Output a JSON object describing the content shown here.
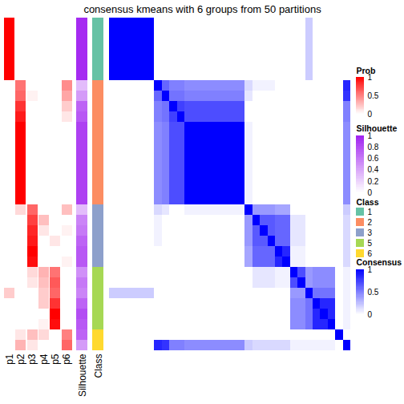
{
  "chart_data": {
    "type": "heatmap",
    "title": "consensus kmeans with 6 groups from 50 partitions",
    "annotation_labels": [
      "p1",
      "p2",
      "p3",
      "p4",
      "p5",
      "p6",
      "Silhouette",
      "Class"
    ],
    "prob": [
      [
        1,
        0,
        0,
        0,
        0,
        0
      ],
      [
        1,
        0,
        0,
        0,
        0,
        0
      ],
      [
        1,
        0,
        0,
        0,
        0,
        0
      ],
      [
        1,
        0,
        0,
        0,
        0,
        0
      ],
      [
        1,
        0,
        0,
        0,
        0,
        0
      ],
      [
        1,
        0,
        0,
        0,
        0,
        0
      ],
      [
        0,
        0.55,
        0,
        0,
        0,
        0.45
      ],
      [
        0,
        0.6,
        0.05,
        0,
        0,
        0.35
      ],
      [
        0,
        0.8,
        0,
        0,
        0,
        0.2
      ],
      [
        0,
        0.9,
        0,
        0,
        0,
        0.1
      ],
      [
        0,
        1,
        0,
        0,
        0,
        0
      ],
      [
        0,
        1,
        0,
        0,
        0,
        0
      ],
      [
        0,
        1,
        0,
        0,
        0,
        0
      ],
      [
        0,
        1,
        0,
        0,
        0,
        0
      ],
      [
        0,
        1,
        0,
        0,
        0,
        0
      ],
      [
        0,
        1,
        0,
        0,
        0,
        0
      ],
      [
        0,
        1,
        0,
        0,
        0,
        0
      ],
      [
        0,
        1,
        0,
        0,
        0,
        0
      ],
      [
        0,
        0.15,
        0.6,
        0,
        0,
        0.25
      ],
      [
        0,
        0,
        0.75,
        0.25,
        0,
        0
      ],
      [
        0,
        0,
        0.85,
        0.1,
        0,
        0.05
      ],
      [
        0,
        0,
        0.9,
        0,
        0.1,
        0
      ],
      [
        0,
        0,
        1,
        0,
        0,
        0
      ],
      [
        0,
        0,
        0.95,
        0,
        0,
        0.05
      ],
      [
        0,
        0,
        0.15,
        0.3,
        0.55,
        0
      ],
      [
        0,
        0,
        0.1,
        0.25,
        0.65,
        0
      ],
      [
        0.2,
        0,
        0,
        0.2,
        0.6,
        0
      ],
      [
        0,
        0,
        0,
        0.2,
        0.8,
        0
      ],
      [
        0,
        0,
        0,
        0,
        1,
        0
      ],
      [
        0,
        0,
        0,
        0.05,
        0.95,
        0
      ],
      [
        0,
        0.1,
        0.25,
        0.15,
        0,
        0.5
      ],
      [
        0,
        0.3,
        0.1,
        0,
        0,
        0.6
      ]
    ],
    "silhouette": [
      0.95,
      0.95,
      0.95,
      0.95,
      0.95,
      0.95,
      0.3,
      0.45,
      0.7,
      0.75,
      0.85,
      0.85,
      0.85,
      0.85,
      0.85,
      0.85,
      0.85,
      0.85,
      0.3,
      0.55,
      0.6,
      0.7,
      0.75,
      0.75,
      0.5,
      0.6,
      0.55,
      0.7,
      0.8,
      0.75,
      0.7,
      0.45
    ],
    "class": [
      1,
      1,
      1,
      1,
      1,
      1,
      2,
      2,
      2,
      2,
      2,
      2,
      2,
      2,
      2,
      2,
      2,
      2,
      3,
      3,
      3,
      3,
      3,
      3,
      5,
      5,
      5,
      5,
      5,
      5,
      6,
      6
    ],
    "consensus": [
      [
        1,
        1,
        1,
        1,
        1,
        1,
        0,
        0,
        0,
        0,
        0,
        0,
        0,
        0,
        0,
        0,
        0,
        0,
        0,
        0,
        0,
        0,
        0,
        0,
        0,
        0,
        0.2,
        0,
        0,
        0,
        0,
        0
      ],
      [
        1,
        1,
        1,
        1,
        1,
        1,
        0,
        0,
        0,
        0,
        0,
        0,
        0,
        0,
        0,
        0,
        0,
        0,
        0,
        0,
        0,
        0,
        0,
        0,
        0,
        0,
        0.2,
        0,
        0,
        0,
        0,
        0
      ],
      [
        1,
        1,
        1,
        1,
        1,
        1,
        0,
        0,
        0,
        0,
        0,
        0,
        0,
        0,
        0,
        0,
        0,
        0,
        0,
        0,
        0,
        0,
        0,
        0,
        0,
        0,
        0.2,
        0,
        0,
        0,
        0,
        0
      ],
      [
        1,
        1,
        1,
        1,
        1,
        1,
        0,
        0,
        0,
        0,
        0,
        0,
        0,
        0,
        0,
        0,
        0,
        0,
        0,
        0,
        0,
        0,
        0,
        0,
        0,
        0,
        0.2,
        0,
        0,
        0,
        0,
        0
      ],
      [
        1,
        1,
        1,
        1,
        1,
        1,
        0,
        0,
        0,
        0,
        0,
        0,
        0,
        0,
        0,
        0,
        0,
        0,
        0,
        0,
        0,
        0,
        0,
        0,
        0,
        0,
        0.2,
        0,
        0,
        0,
        0,
        0
      ],
      [
        1,
        1,
        1,
        1,
        1,
        1,
        0,
        0,
        0,
        0,
        0,
        0,
        0,
        0,
        0,
        0,
        0,
        0,
        0,
        0,
        0,
        0,
        0,
        0,
        0,
        0,
        0.2,
        0,
        0,
        0,
        0,
        0
      ],
      [
        0,
        0,
        0,
        0,
        0,
        0,
        1,
        0.6,
        0.5,
        0.5,
        0.45,
        0.45,
        0.45,
        0.45,
        0.45,
        0.45,
        0.45,
        0.45,
        0.15,
        0.05,
        0.05,
        0.05,
        0,
        0,
        0,
        0,
        0,
        0,
        0,
        0,
        0,
        0.85
      ],
      [
        0,
        0,
        0,
        0,
        0,
        0,
        0.6,
        1,
        0.55,
        0.55,
        0.5,
        0.5,
        0.5,
        0.5,
        0.5,
        0.5,
        0.5,
        0.5,
        0.1,
        0,
        0,
        0,
        0,
        0,
        0,
        0,
        0,
        0,
        0,
        0,
        0,
        0.8
      ],
      [
        0,
        0,
        0,
        0,
        0,
        0,
        0.5,
        0.55,
        1,
        0.75,
        0.7,
        0.7,
        0.7,
        0.7,
        0.7,
        0.7,
        0.7,
        0.7,
        0,
        0,
        0,
        0,
        0,
        0,
        0,
        0,
        0,
        0,
        0,
        0,
        0,
        0.5
      ],
      [
        0,
        0,
        0,
        0,
        0,
        0,
        0.5,
        0.55,
        0.75,
        1,
        0.7,
        0.7,
        0.7,
        0.7,
        0.7,
        0.7,
        0.7,
        0.7,
        0,
        0,
        0,
        0,
        0,
        0,
        0,
        0,
        0,
        0,
        0,
        0,
        0,
        0.5
      ],
      [
        0,
        0,
        0,
        0,
        0,
        0,
        0.45,
        0.5,
        0.7,
        0.7,
        1,
        1,
        1,
        1,
        1,
        1,
        1,
        1,
        0.05,
        0,
        0,
        0,
        0,
        0,
        0,
        0,
        0,
        0,
        0,
        0,
        0,
        0.45
      ],
      [
        0,
        0,
        0,
        0,
        0,
        0,
        0.45,
        0.5,
        0.7,
        0.7,
        1,
        1,
        1,
        1,
        1,
        1,
        1,
        1,
        0.05,
        0,
        0,
        0,
        0,
        0,
        0,
        0,
        0,
        0,
        0,
        0,
        0,
        0.45
      ],
      [
        0,
        0,
        0,
        0,
        0,
        0,
        0.45,
        0.5,
        0.7,
        0.7,
        1,
        1,
        1,
        1,
        1,
        1,
        1,
        1,
        0.05,
        0,
        0,
        0,
        0,
        0,
        0,
        0,
        0,
        0,
        0,
        0,
        0,
        0.45
      ],
      [
        0,
        0,
        0,
        0,
        0,
        0,
        0.45,
        0.5,
        0.7,
        0.7,
        1,
        1,
        1,
        1,
        1,
        1,
        1,
        1,
        0.05,
        0,
        0,
        0,
        0,
        0,
        0,
        0,
        0,
        0,
        0,
        0,
        0,
        0.45
      ],
      [
        0,
        0,
        0,
        0,
        0,
        0,
        0.45,
        0.5,
        0.7,
        0.7,
        1,
        1,
        1,
        1,
        1,
        1,
        1,
        1,
        0.05,
        0,
        0,
        0,
        0,
        0,
        0,
        0,
        0,
        0,
        0,
        0,
        0,
        0.45
      ],
      [
        0,
        0,
        0,
        0,
        0,
        0,
        0.45,
        0.5,
        0.7,
        0.7,
        1,
        1,
        1,
        1,
        1,
        1,
        1,
        1,
        0.05,
        0,
        0,
        0,
        0,
        0,
        0,
        0,
        0,
        0,
        0,
        0,
        0,
        0.45
      ],
      [
        0,
        0,
        0,
        0,
        0,
        0,
        0.45,
        0.5,
        0.7,
        0.7,
        1,
        1,
        1,
        1,
        1,
        1,
        1,
        1,
        0.05,
        0,
        0,
        0,
        0,
        0,
        0,
        0,
        0,
        0,
        0,
        0,
        0,
        0.45
      ],
      [
        0,
        0,
        0,
        0,
        0,
        0,
        0.45,
        0.5,
        0.7,
        0.7,
        1,
        1,
        1,
        1,
        1,
        1,
        1,
        1,
        0.05,
        0,
        0,
        0,
        0,
        0,
        0,
        0,
        0,
        0,
        0,
        0,
        0,
        0.45
      ],
      [
        0,
        0,
        0,
        0,
        0,
        0,
        0.15,
        0.1,
        0,
        0,
        0.05,
        0.05,
        0.05,
        0.05,
        0.05,
        0.05,
        0.05,
        0.05,
        1,
        0.4,
        0.4,
        0.4,
        0.35,
        0.35,
        0,
        0,
        0,
        0,
        0,
        0,
        0,
        0.2
      ],
      [
        0,
        0,
        0,
        0,
        0,
        0,
        0.05,
        0,
        0,
        0,
        0,
        0,
        0,
        0,
        0,
        0,
        0,
        0,
        0.4,
        1,
        0.65,
        0.65,
        0.6,
        0.6,
        0.1,
        0.1,
        0,
        0,
        0,
        0,
        0,
        0.15
      ],
      [
        0,
        0,
        0,
        0,
        0,
        0,
        0.05,
        0,
        0,
        0,
        0,
        0,
        0,
        0,
        0,
        0,
        0,
        0,
        0.4,
        0.65,
        1,
        0.65,
        0.6,
        0.6,
        0.1,
        0.1,
        0,
        0,
        0,
        0,
        0,
        0.15
      ],
      [
        0,
        0,
        0,
        0,
        0,
        0,
        0.05,
        0,
        0,
        0,
        0,
        0,
        0,
        0,
        0,
        0,
        0,
        0,
        0.4,
        0.65,
        0.65,
        1,
        0.6,
        0.6,
        0.1,
        0.1,
        0,
        0,
        0,
        0,
        0,
        0.15
      ],
      [
        0,
        0,
        0,
        0,
        0,
        0,
        0,
        0,
        0,
        0,
        0,
        0,
        0,
        0,
        0,
        0,
        0,
        0,
        0.35,
        0.6,
        0.6,
        0.6,
        1,
        0.85,
        0.05,
        0.05,
        0,
        0,
        0,
        0,
        0,
        0.15
      ],
      [
        0,
        0,
        0,
        0,
        0,
        0,
        0,
        0,
        0,
        0,
        0,
        0,
        0,
        0,
        0,
        0,
        0,
        0,
        0.35,
        0.6,
        0.6,
        0.6,
        0.85,
        1,
        0.05,
        0.05,
        0,
        0,
        0,
        0,
        0,
        0.15
      ],
      [
        0,
        0,
        0,
        0,
        0,
        0,
        0,
        0,
        0,
        0,
        0,
        0,
        0,
        0,
        0,
        0,
        0,
        0,
        0,
        0.1,
        0.1,
        0.1,
        0.05,
        0.05,
        1,
        0.7,
        0.4,
        0.45,
        0.45,
        0.45,
        0,
        0.05
      ],
      [
        0,
        0,
        0,
        0,
        0,
        0,
        0,
        0,
        0,
        0,
        0,
        0,
        0,
        0,
        0,
        0,
        0,
        0,
        0,
        0.1,
        0.1,
        0.1,
        0.05,
        0.05,
        0.7,
        1,
        0.4,
        0.45,
        0.45,
        0.45,
        0,
        0.05
      ],
      [
        0.2,
        0.2,
        0.2,
        0.2,
        0.2,
        0.2,
        0,
        0,
        0,
        0,
        0,
        0,
        0,
        0,
        0,
        0,
        0,
        0,
        0,
        0,
        0,
        0,
        0,
        0,
        0.4,
        0.4,
        1,
        0.55,
        0.55,
        0.55,
        0,
        0.05
      ],
      [
        0,
        0,
        0,
        0,
        0,
        0,
        0,
        0,
        0,
        0,
        0,
        0,
        0,
        0,
        0,
        0,
        0,
        0,
        0,
        0,
        0,
        0,
        0,
        0,
        0.45,
        0.45,
        0.55,
        1,
        0.85,
        0.85,
        0,
        0.05
      ],
      [
        0,
        0,
        0,
        0,
        0,
        0,
        0,
        0,
        0,
        0,
        0,
        0,
        0,
        0,
        0,
        0,
        0,
        0,
        0,
        0,
        0,
        0,
        0,
        0,
        0.45,
        0.45,
        0.55,
        0.85,
        1,
        0.85,
        0,
        0.05
      ],
      [
        0,
        0,
        0,
        0,
        0,
        0,
        0,
        0,
        0,
        0,
        0,
        0,
        0,
        0,
        0,
        0,
        0,
        0,
        0,
        0,
        0,
        0,
        0,
        0,
        0.45,
        0.45,
        0.55,
        0.85,
        0.85,
        1,
        0,
        0.05
      ],
      [
        0,
        0,
        0,
        0,
        0,
        0,
        0,
        0,
        0,
        0,
        0,
        0,
        0,
        0,
        0,
        0,
        0,
        0,
        0,
        0,
        0,
        0,
        0,
        0,
        0,
        0,
        0,
        0,
        0,
        0,
        1,
        0
      ],
      [
        0,
        0,
        0,
        0,
        0,
        0,
        0.85,
        0.8,
        0.5,
        0.5,
        0.45,
        0.45,
        0.45,
        0.45,
        0.45,
        0.45,
        0.45,
        0.45,
        0.2,
        0.15,
        0.15,
        0.15,
        0.15,
        0.15,
        0.05,
        0.05,
        0.05,
        0.05,
        0.05,
        0.05,
        0,
        1
      ]
    ],
    "legends": {
      "prob": {
        "title": "Prob",
        "range": [
          0,
          1
        ],
        "ticks": [
          0,
          0.5,
          1
        ],
        "colors": [
          "#FFFFFF",
          "#FF0000"
        ]
      },
      "silhouette": {
        "title": "Silhouette",
        "range": [
          0,
          1
        ],
        "ticks": [
          0,
          0.2,
          0.4,
          0.6,
          0.8,
          1
        ],
        "colors": [
          "#FFFFFF",
          "#A020F0"
        ]
      },
      "class": {
        "title": "Class",
        "categories": [
          1,
          2,
          3,
          5,
          6
        ],
        "colors": [
          "#66C2A5",
          "#FC8D62",
          "#8DA0CB",
          "#A6D854",
          "#FFD92F"
        ]
      },
      "consensus": {
        "title": "Consensus",
        "range": [
          0,
          1
        ],
        "ticks": [
          0,
          0.5,
          1
        ],
        "colors": [
          "#FFFFFF",
          "#0000FF"
        ]
      }
    }
  }
}
